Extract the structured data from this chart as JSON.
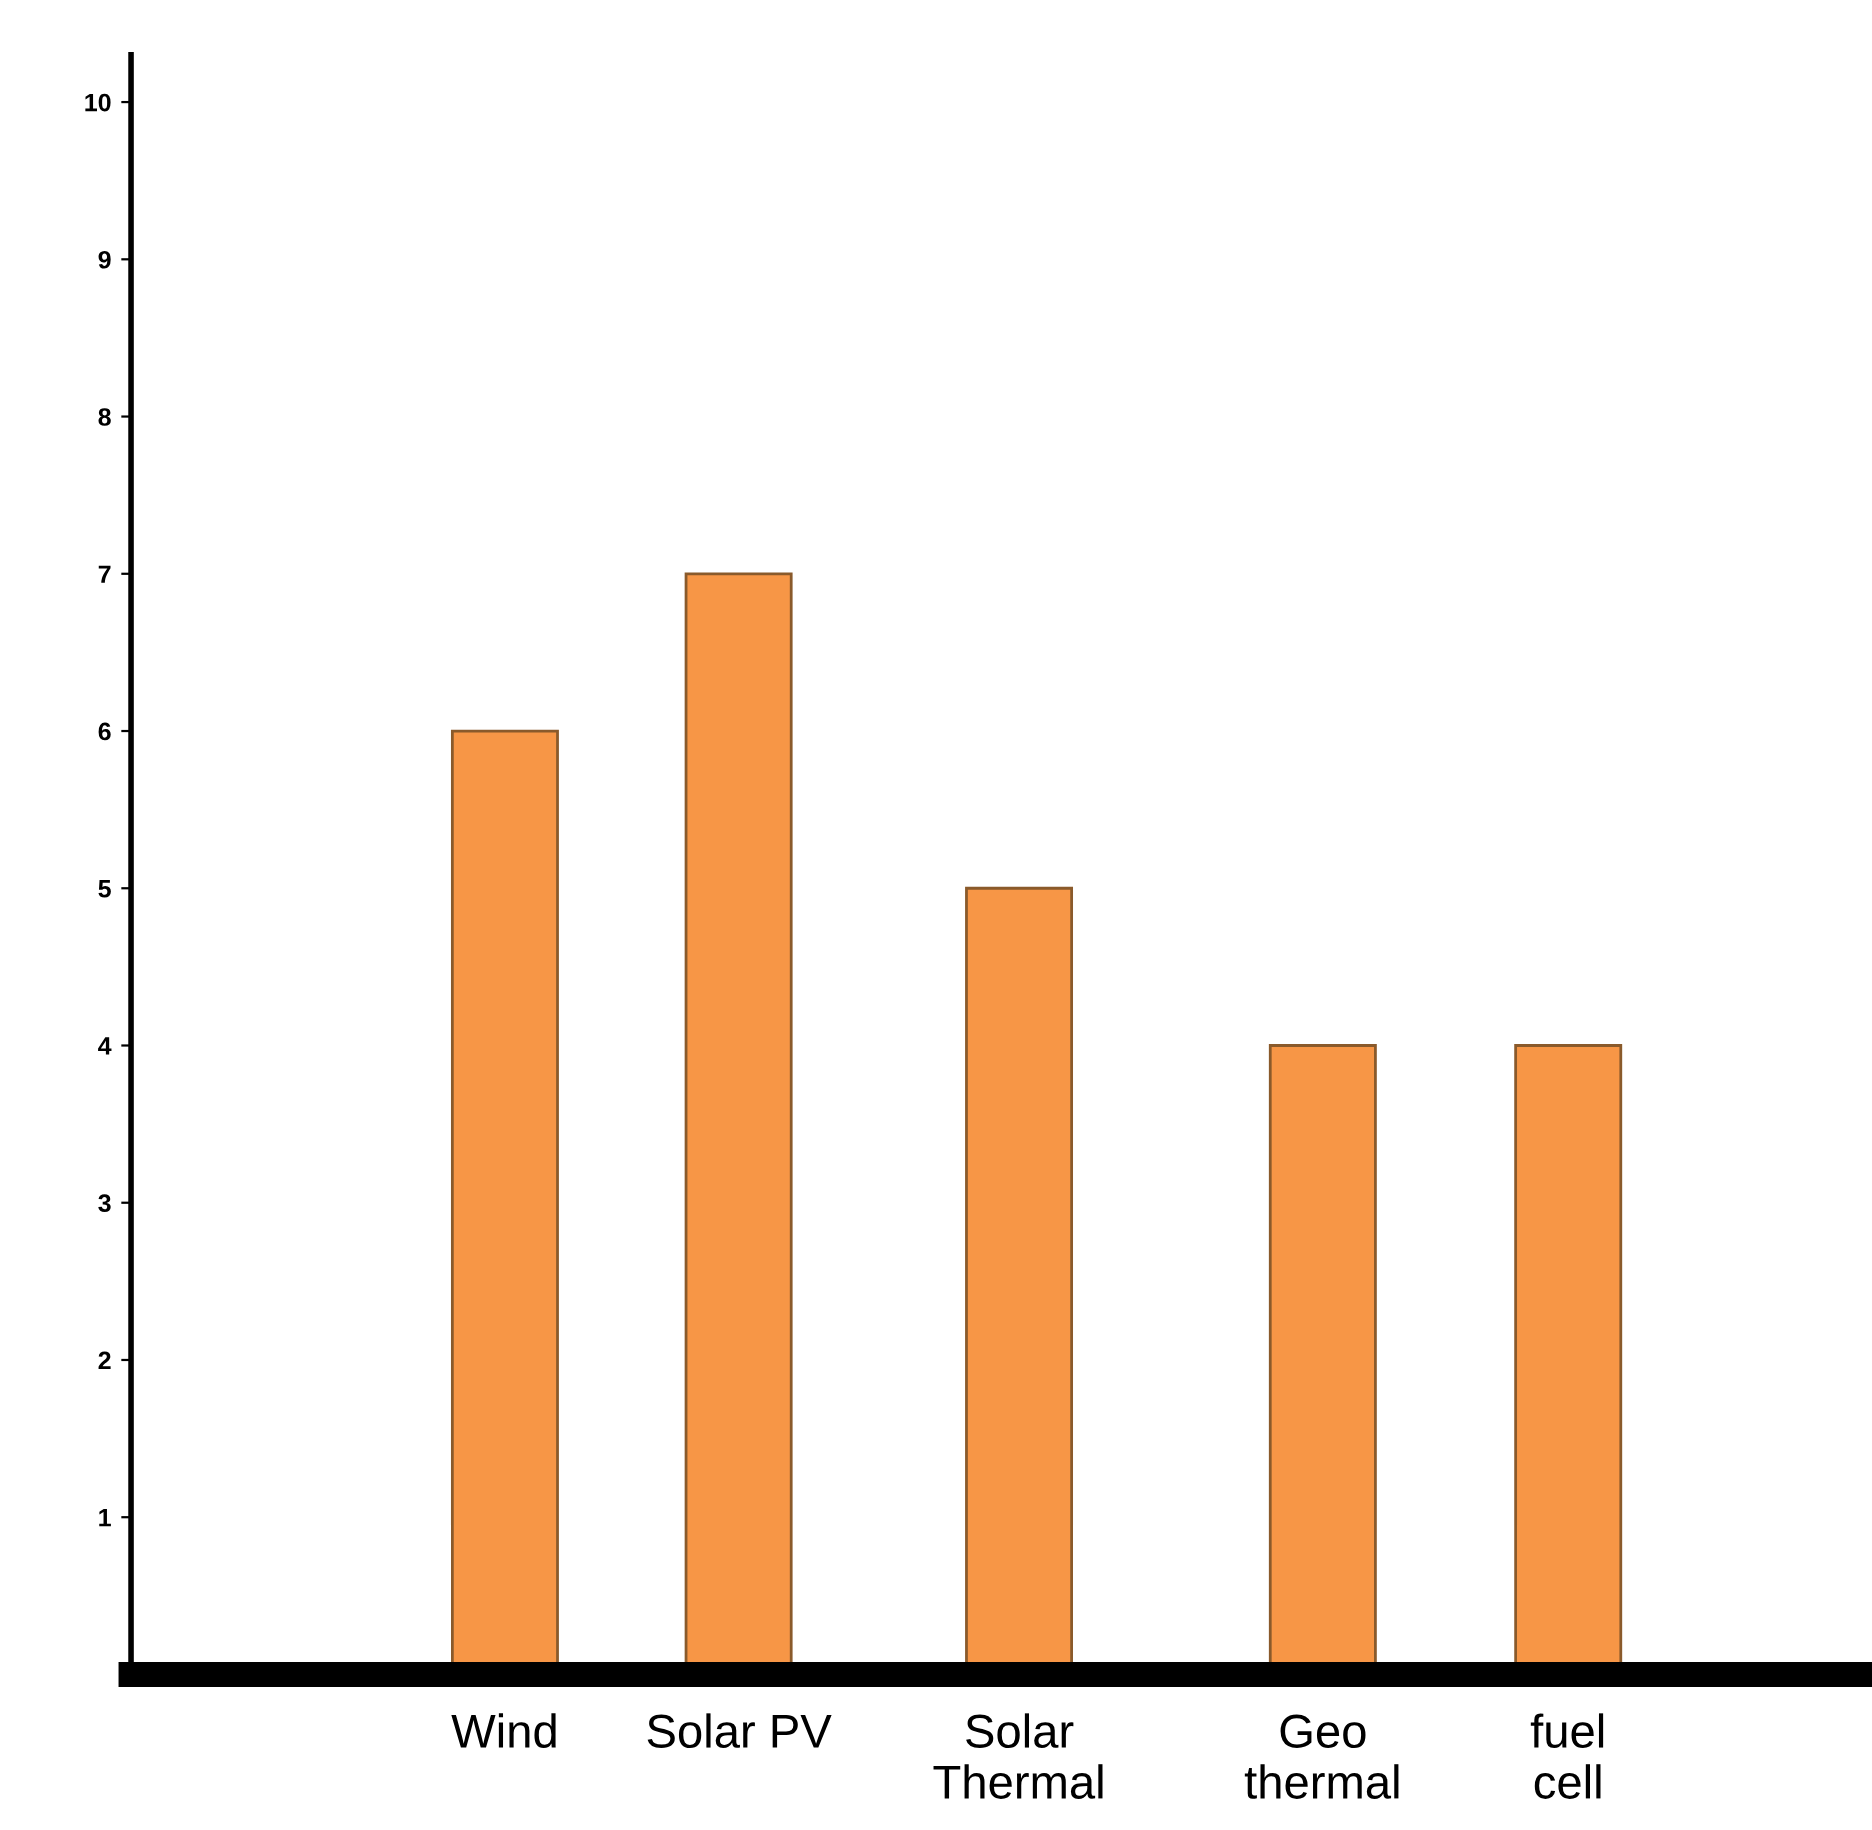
{
  "chart_data": {
    "type": "bar",
    "categories": [
      "Wind",
      "Solar PV",
      "Solar\nThermal",
      "Geo\nthermal",
      "fuel\ncell"
    ],
    "values": [
      6,
      7,
      5,
      4,
      4
    ],
    "color": "#f79646",
    "ylim": [
      0,
      10.3
    ],
    "yticks": [
      1,
      2,
      3,
      4,
      5,
      6,
      7,
      8,
      9,
      10
    ],
    "grid": false,
    "legend": false
  }
}
